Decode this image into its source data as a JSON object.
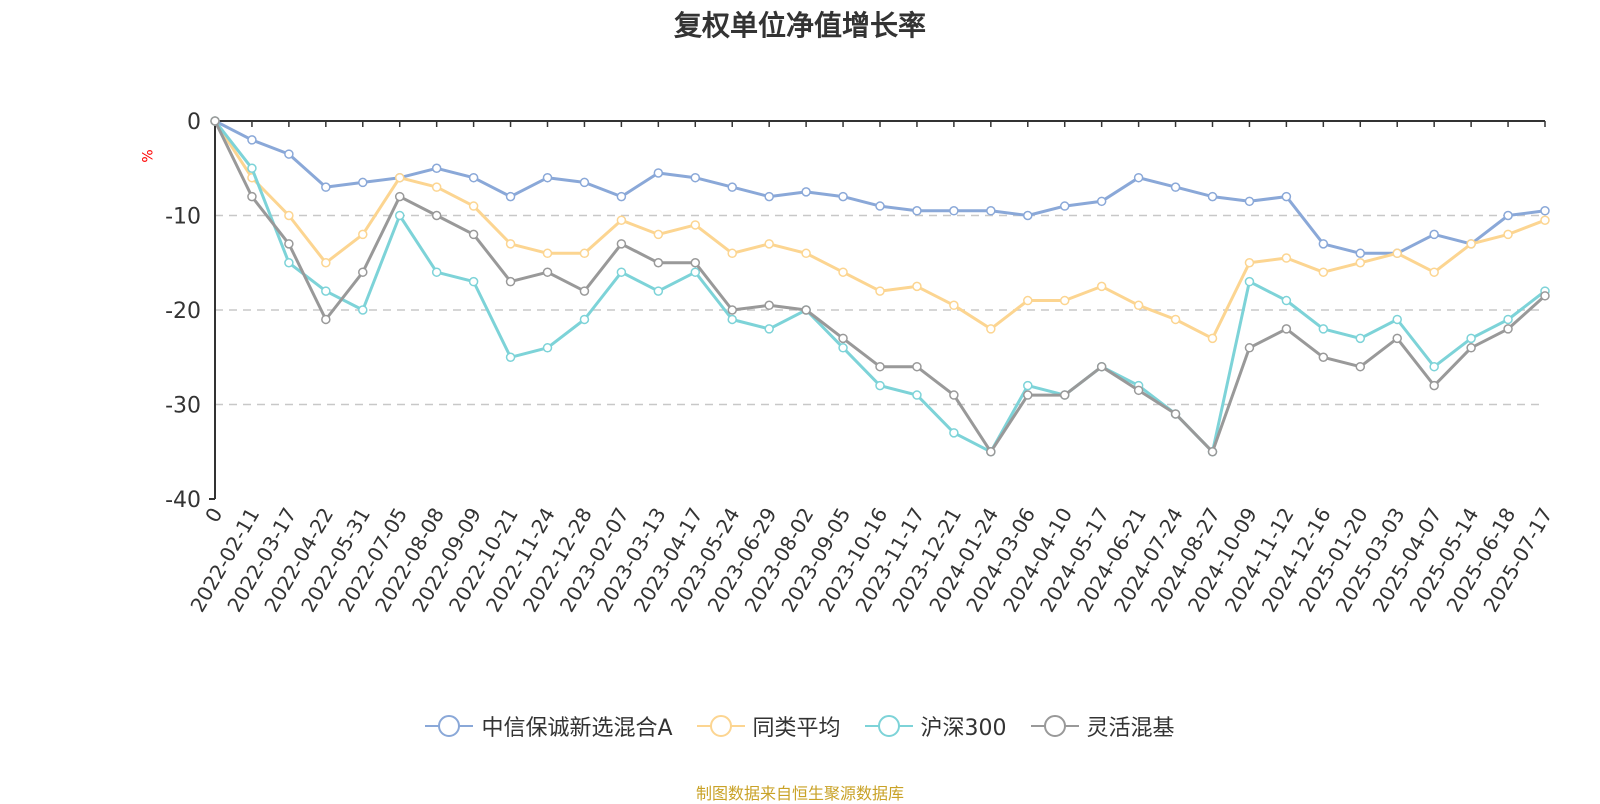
{
  "chart_data": {
    "type": "line",
    "title": "复权单位净值增长率",
    "ylabel": "%",
    "ylim": [
      -40,
      0
    ],
    "yticks": [
      0,
      -10,
      -20,
      -30,
      -40
    ],
    "grid": true,
    "legend_position": "bottom-center",
    "x_tick_labels": [
      "0",
      "2022-02-11",
      "2022-03-17",
      "2022-04-22",
      "2022-05-31",
      "2022-07-05",
      "2022-08-08",
      "2022-09-09",
      "2022-10-21",
      "2022-11-24",
      "2022-12-28",
      "2023-02-07",
      "2023-03-13",
      "2023-04-17",
      "2023-05-24",
      "2023-06-29",
      "2023-08-02",
      "2023-09-05",
      "2023-10-16",
      "2023-11-17",
      "2023-12-21",
      "2024-01-24",
      "2024-03-06",
      "2024-04-10",
      "2024-05-17",
      "2024-06-21",
      "2024-07-24",
      "2024-08-27",
      "2024-10-09",
      "2024-11-12",
      "2024-12-16",
      "2025-01-20",
      "2025-03-03",
      "2025-04-07",
      "2025-05-14",
      "2025-06-18",
      "2025-07-17"
    ],
    "series": [
      {
        "name": "中信保诚新选混合A",
        "color": "#8aa8d8",
        "values": [
          0,
          -2,
          -3.5,
          -7,
          -6.5,
          -6,
          -5,
          -6,
          -8,
          -6,
          -6.5,
          -8,
          -5.5,
          -6,
          -7,
          -8,
          -7.5,
          -8,
          -9,
          -9.5,
          -9.5,
          -9.5,
          -10,
          -9,
          -8.5,
          -6,
          -7,
          -8,
          -8.5,
          -8,
          -13,
          -14,
          -14,
          -12,
          -13,
          -10,
          -9.5
        ]
      },
      {
        "name": "同类平均",
        "color": "#fcd591",
        "values": [
          0,
          -6,
          -10,
          -15,
          -12,
          -6,
          -7,
          -9,
          -13,
          -14,
          -14,
          -10.5,
          -12,
          -11,
          -14,
          -13,
          -14,
          -16,
          -18,
          -17.5,
          -19.5,
          -22,
          -19,
          -19,
          -17.5,
          -19.5,
          -21,
          -23,
          -15,
          -14.5,
          -16,
          -15,
          -14,
          -16,
          -13,
          -12,
          -10.5
        ]
      },
      {
        "name": "沪深300",
        "color": "#7dd3d8",
        "values": [
          0,
          -5,
          -15,
          -18,
          -20,
          -10,
          -16,
          -17,
          -25,
          -24,
          -21,
          -16,
          -18,
          -16,
          -21,
          -22,
          -20,
          -24,
          -28,
          -29,
          -33,
          -35,
          -28,
          -29,
          -26,
          -28,
          -31,
          -35,
          -17,
          -19,
          -22,
          -23,
          -21,
          -26,
          -23,
          -21,
          -18
        ]
      },
      {
        "name": "灵活混基",
        "color": "#999999",
        "values": [
          0,
          -8,
          -13,
          -21,
          -16,
          -8,
          -10,
          -12,
          -17,
          -16,
          -18,
          -13,
          -15,
          -15,
          -20,
          -19.5,
          -20,
          -23,
          -26,
          -26,
          -29,
          -35,
          -29,
          -29,
          -26,
          -28.5,
          -31,
          -35,
          -24,
          -22,
          -25,
          -26,
          -23,
          -28,
          -24,
          -22,
          -18.5
        ]
      }
    ]
  },
  "source_note": "制图数据来自恒生聚源数据库"
}
